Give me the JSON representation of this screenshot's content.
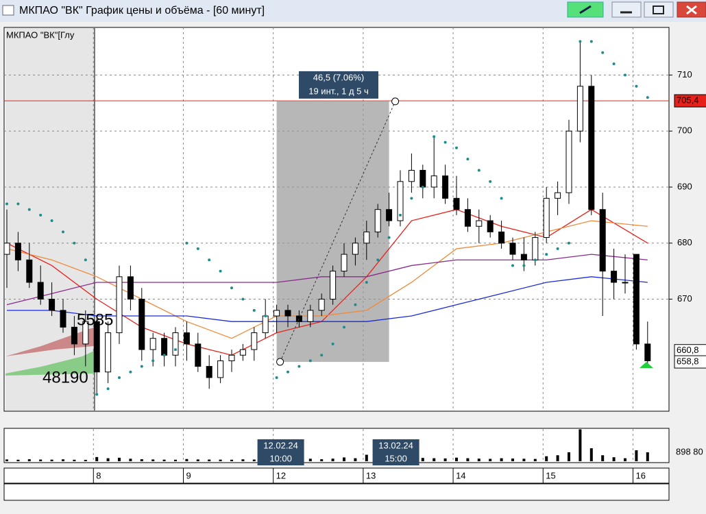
{
  "window": {
    "title": "МКПАО \"ВК\" График цены и объёма - [60 минут]"
  },
  "chart_data": {
    "type": "candlestick",
    "instrument_label": "МКПАО \"ВК\"[Глу",
    "ylim": [
      650,
      718.5
    ],
    "yticks": [
      670,
      680,
      690,
      700,
      710
    ],
    "grid": true,
    "candles": {
      "open": [
        678,
        680,
        677,
        673,
        670,
        668,
        665,
        662,
        666,
        657,
        664,
        674,
        670,
        661,
        663,
        660,
        664,
        662,
        658,
        656,
        659,
        660,
        661,
        664,
        667,
        668,
        667,
        666,
        668,
        670,
        675,
        678,
        680,
        682,
        686,
        684,
        691,
        693,
        690,
        692,
        688,
        686,
        683,
        684,
        682,
        680,
        678,
        677,
        681,
        688,
        689,
        700,
        708,
        686,
        675,
        673,
        678,
        662
      ],
      "high": [
        686,
        682,
        680,
        676,
        673,
        670,
        667,
        668,
        667,
        666,
        676,
        676,
        672,
        664,
        664,
        665,
        666,
        664,
        660,
        660,
        661,
        662,
        665,
        670,
        669,
        669,
        668,
        669,
        671,
        676,
        680,
        681,
        684,
        687,
        689,
        693,
        696,
        694,
        699,
        694,
        692,
        688,
        686,
        685,
        684,
        681,
        681,
        682,
        690,
        691,
        702,
        716,
        710,
        689,
        679,
        678,
        678,
        666
      ],
      "low": [
        672,
        675,
        672,
        669,
        667,
        664,
        660,
        658,
        653,
        655,
        662,
        668,
        659,
        658,
        658,
        658,
        659,
        657,
        654,
        655,
        657,
        659,
        659,
        663,
        664,
        665,
        665,
        665,
        667,
        669,
        674,
        676,
        677,
        681,
        683,
        683,
        689,
        688,
        688,
        687,
        685,
        682,
        680,
        681,
        679,
        677,
        675,
        676,
        680,
        685,
        687,
        698,
        685,
        667,
        670,
        671,
        661,
        658
      ],
      "close": [
        680,
        677,
        673,
        670,
        668,
        665,
        662,
        666,
        657,
        664,
        674,
        670,
        661,
        663,
        660,
        664,
        662,
        658,
        656,
        659,
        660,
        661,
        664,
        667,
        668,
        667,
        666,
        668,
        670,
        675,
        678,
        680,
        682,
        686,
        684,
        691,
        693,
        690,
        692,
        688,
        686,
        683,
        684,
        682,
        680,
        678,
        677,
        681,
        688,
        689,
        700,
        708,
        686,
        675,
        673,
        673,
        662,
        659
      ],
      "up_color": "#ffffff",
      "down_color": "#000000"
    },
    "moving_averages": {
      "x": [
        0,
        4,
        8,
        12,
        16,
        20,
        24,
        28,
        32,
        36,
        40,
        44,
        48,
        52,
        57
      ],
      "series": [
        {
          "color": "#e8201a",
          "values": [
            680,
            676,
            670,
            665,
            662,
            660,
            664,
            666,
            674,
            684,
            686,
            683,
            681,
            686,
            680
          ]
        },
        {
          "color": "#f08a3a",
          "values": [
            679,
            677,
            674,
            670,
            666,
            663,
            667,
            667,
            668,
            673,
            679,
            680,
            682,
            684,
            683
          ]
        },
        {
          "color": "#8a2a8a",
          "values": [
            669,
            671,
            673,
            673,
            673,
            673,
            673,
            674,
            674,
            676,
            677,
            677,
            677,
            678,
            677
          ]
        },
        {
          "color": "#1a2ad8",
          "values": [
            668,
            668,
            667,
            667,
            667,
            666,
            666,
            666,
            666,
            667,
            669,
            671,
            673,
            674,
            673
          ]
        }
      ]
    },
    "sar": {
      "color": "#1f8c8c",
      "values": [
        687,
        687,
        686,
        685,
        684,
        682,
        680,
        677,
        653,
        654,
        656,
        657,
        658,
        659,
        660,
        661,
        680,
        679,
        677,
        675,
        672,
        670,
        668,
        667,
        656,
        657,
        658,
        659,
        660,
        662,
        665,
        669,
        673,
        677,
        681,
        685,
        688,
        690,
        699,
        698,
        697,
        695,
        693,
        691,
        688,
        676,
        676,
        677,
        678,
        679,
        680,
        716,
        716,
        714,
        712,
        710,
        708,
        706
      ]
    },
    "price_levels": [
      {
        "value": 705.4,
        "label": "705,4",
        "color": "#e8201a"
      },
      {
        "value": 660.8,
        "label": "660,8",
        "color": "#ffffff"
      },
      {
        "value": 658.8,
        "label": "658,8",
        "color": "#ffffff"
      }
    ],
    "measure": {
      "from_candle": 24,
      "to_candle": 34,
      "from_price": 658.8,
      "to_price": 705.3,
      "label": "46,5 (7.06%)",
      "sublabel": "19 инт., 1 д 5 ч"
    },
    "profile_labels": [
      "5585",
      "48190"
    ],
    "crosshair_labels": [
      {
        "candle": 24,
        "date": "12.02.24",
        "time": "10:00"
      },
      {
        "candle": 34,
        "date": "13.02.24",
        "time": "15:00"
      }
    ],
    "day_starts": [
      {
        "candle": 8,
        "label": "8"
      },
      {
        "candle": 16,
        "label": "9"
      },
      {
        "candle": 24,
        "label": "12"
      },
      {
        "candle": 32,
        "label": "13"
      },
      {
        "candle": 40,
        "label": "14"
      },
      {
        "candle": 48,
        "label": "15"
      },
      {
        "candle": 56,
        "label": "16"
      }
    ],
    "volume": {
      "ylim": [
        0,
        3300000
      ],
      "last_label": "898 80",
      "values": [
        180000,
        150000,
        200000,
        170000,
        160000,
        190000,
        150000,
        140000,
        420000,
        300000,
        350000,
        250000,
        200000,
        180000,
        160000,
        150000,
        220000,
        180000,
        170000,
        160000,
        150000,
        190000,
        170000,
        230000,
        600000,
        350000,
        300000,
        250000,
        200000,
        260000,
        380000,
        300000,
        650000,
        420000,
        380000,
        350000,
        400000,
        330000,
        300000,
        280000,
        360000,
        300000,
        260000,
        240000,
        300000,
        270000,
        250000,
        230000,
        500000,
        600000,
        900000,
        3200000,
        1300000,
        600000,
        400000,
        300000,
        1100000,
        898800
      ]
    }
  }
}
